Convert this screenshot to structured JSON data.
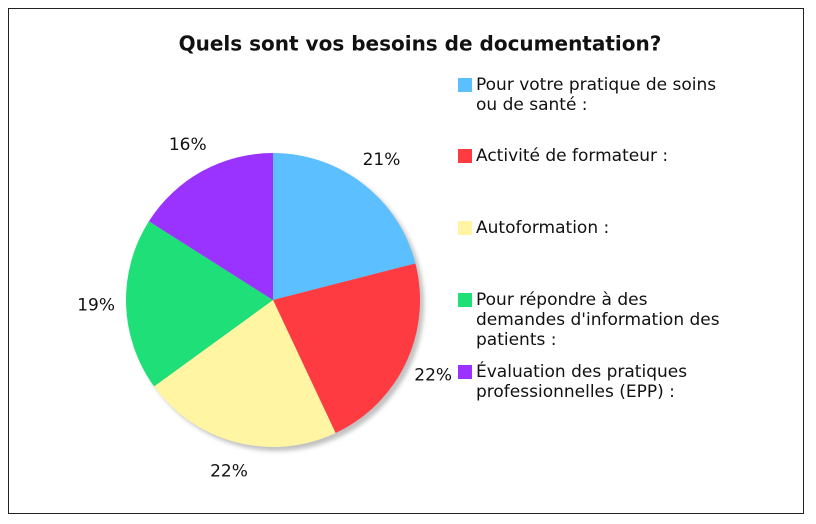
{
  "chart_data": {
    "type": "pie",
    "title": "Quels sont vos besoins de documentation?",
    "categories": [
      "Pour votre pratique de soins ou de santé :",
      "Activité de formateur :",
      "Autoformation :",
      "Pour répondre à des demandes d'information des patients :",
      "Évaluation des pratiques professionnelles (EPP) :"
    ],
    "values": [
      21,
      22,
      22,
      19,
      16
    ],
    "value_labels": [
      "21%",
      "22%",
      "22%",
      "19%",
      "16%"
    ],
    "colors": [
      "#5cbfff",
      "#ff3b42",
      "#fff5a3",
      "#1fdf78",
      "#9a33ff"
    ]
  }
}
